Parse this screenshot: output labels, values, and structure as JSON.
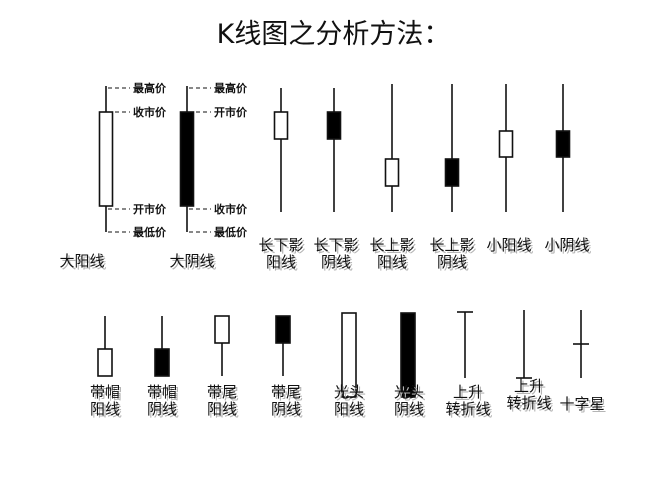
{
  "title": "K线图之分析方法：",
  "annotations": {
    "high": "最高价",
    "low": "最低价",
    "close": "收市价",
    "open": "开市价",
    "dashes": "- - -"
  },
  "candles": [
    {
      "id": "big-yang",
      "fill": "white",
      "label": [
        "大阳线"
      ]
    },
    {
      "id": "big-yin",
      "fill": "black",
      "label": [
        "大阴线"
      ]
    },
    {
      "id": "long-lower-shadow-yang",
      "fill": "white",
      "label": [
        "长下影",
        "阳线"
      ]
    },
    {
      "id": "long-lower-shadow-yin",
      "fill": "black",
      "label": [
        "长下影",
        "阴线"
      ]
    },
    {
      "id": "long-upper-shadow-yang",
      "fill": "white",
      "label": [
        "长上影",
        "阳线"
      ]
    },
    {
      "id": "long-upper-shadow-yin",
      "fill": "black",
      "label": [
        "长上影",
        "阴线"
      ]
    },
    {
      "id": "small-yang",
      "fill": "white",
      "label": [
        "小阳线"
      ]
    },
    {
      "id": "small-yin",
      "fill": "black",
      "label": [
        "小阴线"
      ]
    },
    {
      "id": "capped-yang",
      "fill": "white",
      "label": [
        "带帽",
        "阳线"
      ]
    },
    {
      "id": "capped-yin",
      "fill": "black",
      "label": [
        "带帽",
        "阴线"
      ]
    },
    {
      "id": "tailed-yang",
      "fill": "white",
      "label": [
        "带尾",
        "阳线"
      ]
    },
    {
      "id": "tailed-yin",
      "fill": "black",
      "label": [
        "带尾",
        "阴线"
      ]
    },
    {
      "id": "bald-yang",
      "fill": "white",
      "label": [
        "光头",
        "阳线"
      ]
    },
    {
      "id": "bald-yin",
      "fill": "black",
      "label": [
        "光头",
        "阴线"
      ]
    },
    {
      "id": "rising-reversal",
      "fill": "none",
      "label": [
        "上升",
        "转折线"
      ]
    },
    {
      "id": "falling-reversal",
      "fill": "none",
      "label": [
        "上升",
        "转折线"
      ]
    },
    {
      "id": "doji-cross",
      "fill": "none",
      "label": [
        "十字星"
      ]
    }
  ]
}
